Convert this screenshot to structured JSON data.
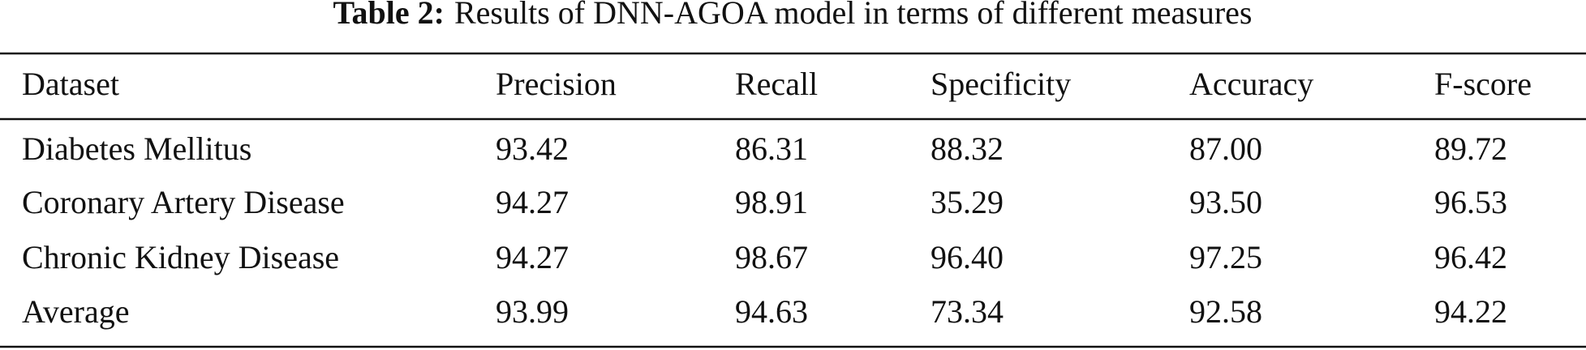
{
  "caption": {
    "label": "Table 2:",
    "text": "Results of DNN-AGOA model in terms of different measures"
  },
  "table": {
    "header": [
      "Dataset",
      "Precision",
      "Recall",
      "Specificity",
      "Accuracy",
      "F-score"
    ],
    "rows": [
      [
        "Diabetes Mellitus",
        "93.42",
        "86.31",
        "88.32",
        "87.00",
        "89.72"
      ],
      [
        "Coronary Artery Disease",
        "94.27",
        "98.91",
        "35.29",
        "93.50",
        "96.53"
      ],
      [
        "Chronic Kidney Disease",
        "94.27",
        "98.67",
        "96.40",
        "97.25",
        "96.42"
      ],
      [
        "Average",
        "93.99",
        "94.63",
        "73.34",
        "92.58",
        "94.22"
      ]
    ]
  }
}
